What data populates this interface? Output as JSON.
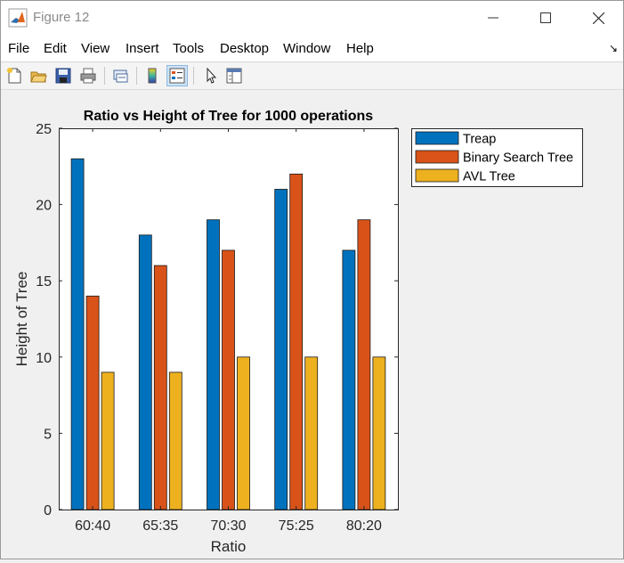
{
  "window": {
    "title": "Figure 12",
    "minimize_icon": "minimize-icon",
    "maximize_icon": "maximize-icon",
    "close_icon": "close-icon"
  },
  "menu": {
    "items": [
      "File",
      "Edit",
      "View",
      "Insert",
      "Tools",
      "Desktop",
      "Window",
      "Help"
    ]
  },
  "toolbar": {
    "icons": [
      "new-figure-icon",
      "open-file-icon",
      "save-icon",
      "print-icon",
      "link-plot-icon",
      "insert-colorbar-icon",
      "insert-legend-icon",
      "edit-plot-icon",
      "property-inspector-icon"
    ],
    "active": "insert-legend-icon"
  },
  "chart_data": {
    "type": "bar",
    "title": "Ratio vs Height of Tree for 1000 operations",
    "xlabel": "Ratio",
    "ylabel": "Height of Tree",
    "categories": [
      "60:40",
      "65:35",
      "70:30",
      "75:25",
      "80:20"
    ],
    "series": [
      {
        "name": "Treap",
        "color": "#0072bd",
        "values": [
          23,
          18,
          19,
          21,
          17
        ]
      },
      {
        "name": "Binary Search Tree",
        "color": "#d95319",
        "values": [
          14,
          16,
          17,
          22,
          19
        ]
      },
      {
        "name": "AVL Tree",
        "color": "#edb120",
        "values": [
          9,
          9,
          10,
          10,
          10
        ]
      }
    ],
    "ylim": [
      0,
      25
    ],
    "yticks": [
      0,
      5,
      10,
      15,
      20,
      25
    ],
    "grid": false,
    "legend_position": "outside-top-right"
  }
}
